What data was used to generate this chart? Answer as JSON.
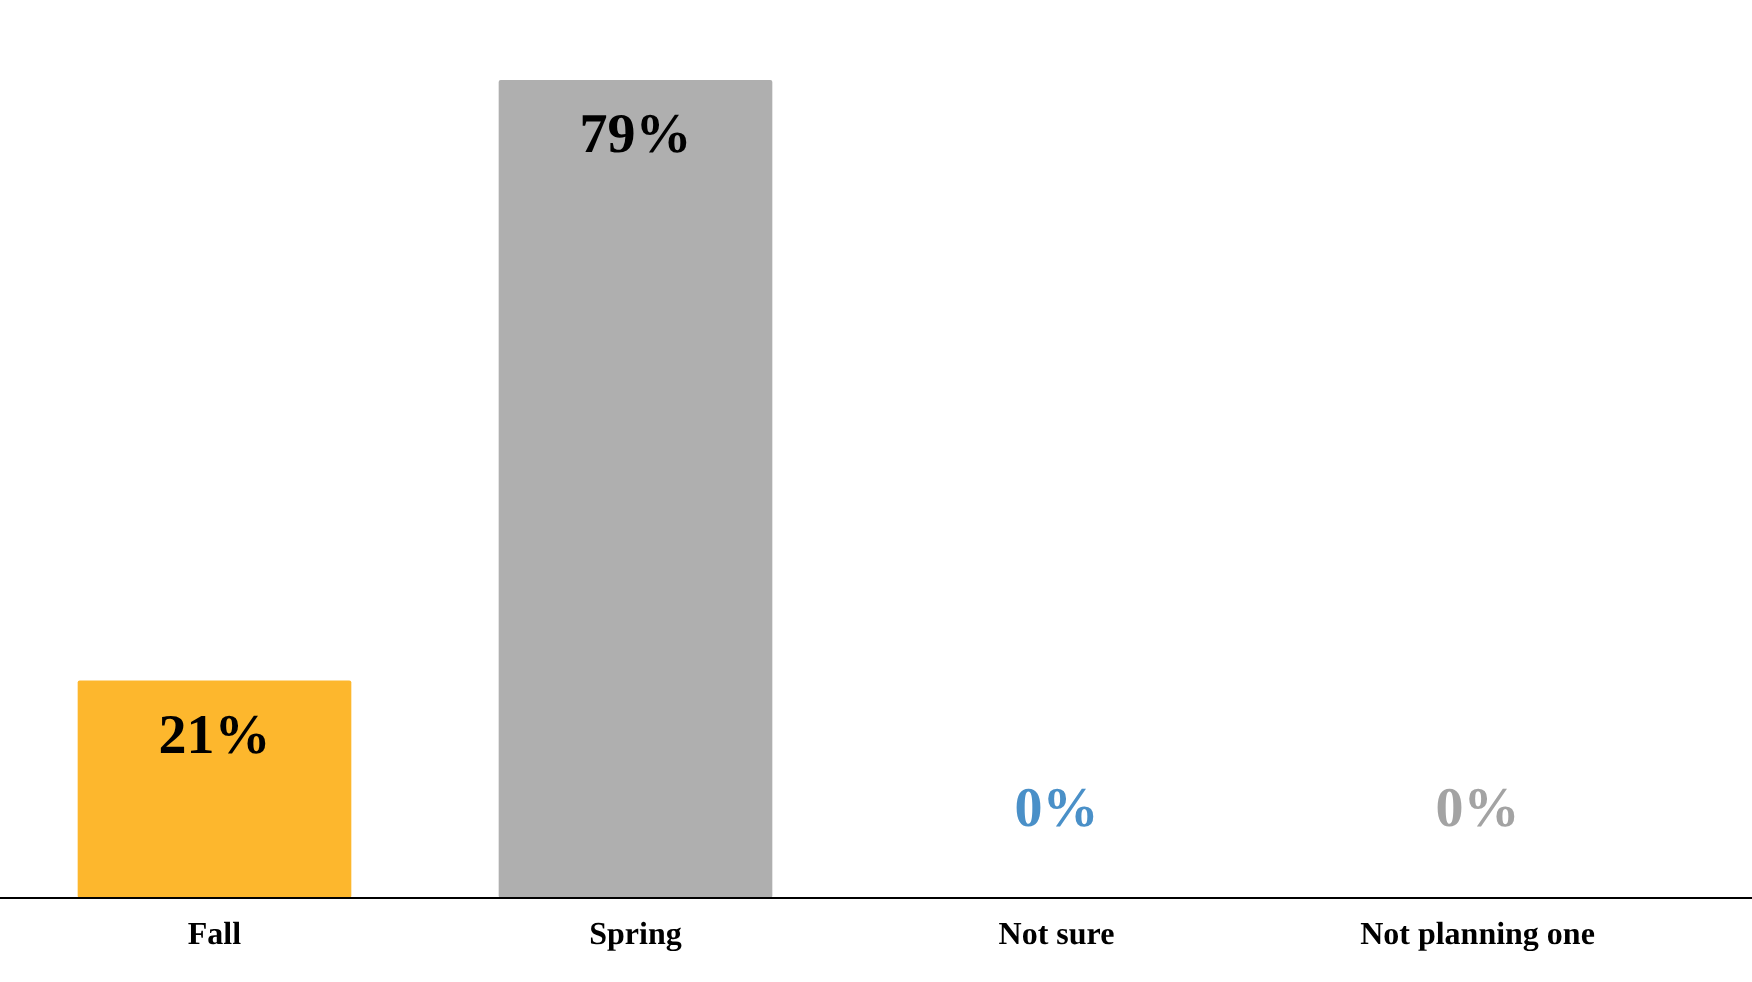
{
  "chart_data": {
    "type": "bar",
    "categories": [
      "Fall",
      "Spring",
      "Not sure",
      "Not planning one"
    ],
    "values": [
      21,
      79,
      0,
      0
    ],
    "colors": [
      "#fdb72d",
      "#afafaf",
      "#4a90c8",
      "#a3a3a3"
    ],
    "value_labels": [
      "21%",
      "79%",
      "0%",
      "0%"
    ]
  }
}
